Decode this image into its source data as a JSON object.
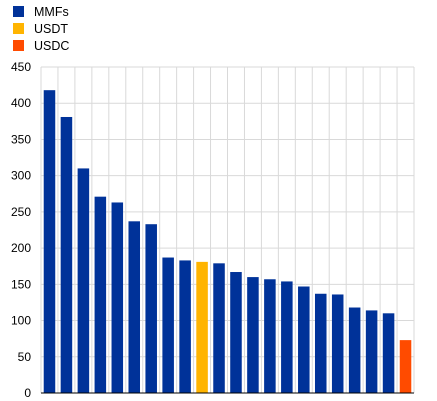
{
  "legend": [
    {
      "label": "MMFs",
      "color": "#003299"
    },
    {
      "label": "USDT",
      "color": "#FFB400"
    },
    {
      "label": "USDC",
      "color": "#FF4B00"
    }
  ],
  "chart_data": {
    "type": "bar",
    "title": "",
    "xlabel": "",
    "ylabel": "",
    "ylim": [
      0,
      450
    ],
    "yticks": [
      0,
      50,
      100,
      150,
      200,
      250,
      300,
      350,
      400,
      450
    ],
    "grid": true,
    "legend_position": "top-left",
    "bars": [
      {
        "value": 418,
        "group": "MMFs"
      },
      {
        "value": 381,
        "group": "MMFs"
      },
      {
        "value": 310,
        "group": "MMFs"
      },
      {
        "value": 271,
        "group": "MMFs"
      },
      {
        "value": 263,
        "group": "MMFs"
      },
      {
        "value": 237,
        "group": "MMFs"
      },
      {
        "value": 233,
        "group": "MMFs"
      },
      {
        "value": 187,
        "group": "MMFs"
      },
      {
        "value": 183,
        "group": "MMFs"
      },
      {
        "value": 181,
        "group": "USDT"
      },
      {
        "value": 179,
        "group": "MMFs"
      },
      {
        "value": 167,
        "group": "MMFs"
      },
      {
        "value": 160,
        "group": "MMFs"
      },
      {
        "value": 157,
        "group": "MMFs"
      },
      {
        "value": 154,
        "group": "MMFs"
      },
      {
        "value": 147,
        "group": "MMFs"
      },
      {
        "value": 137,
        "group": "MMFs"
      },
      {
        "value": 136,
        "group": "MMFs"
      },
      {
        "value": 118,
        "group": "MMFs"
      },
      {
        "value": 114,
        "group": "MMFs"
      },
      {
        "value": 110,
        "group": "MMFs"
      },
      {
        "value": 73,
        "group": "USDC"
      }
    ]
  }
}
